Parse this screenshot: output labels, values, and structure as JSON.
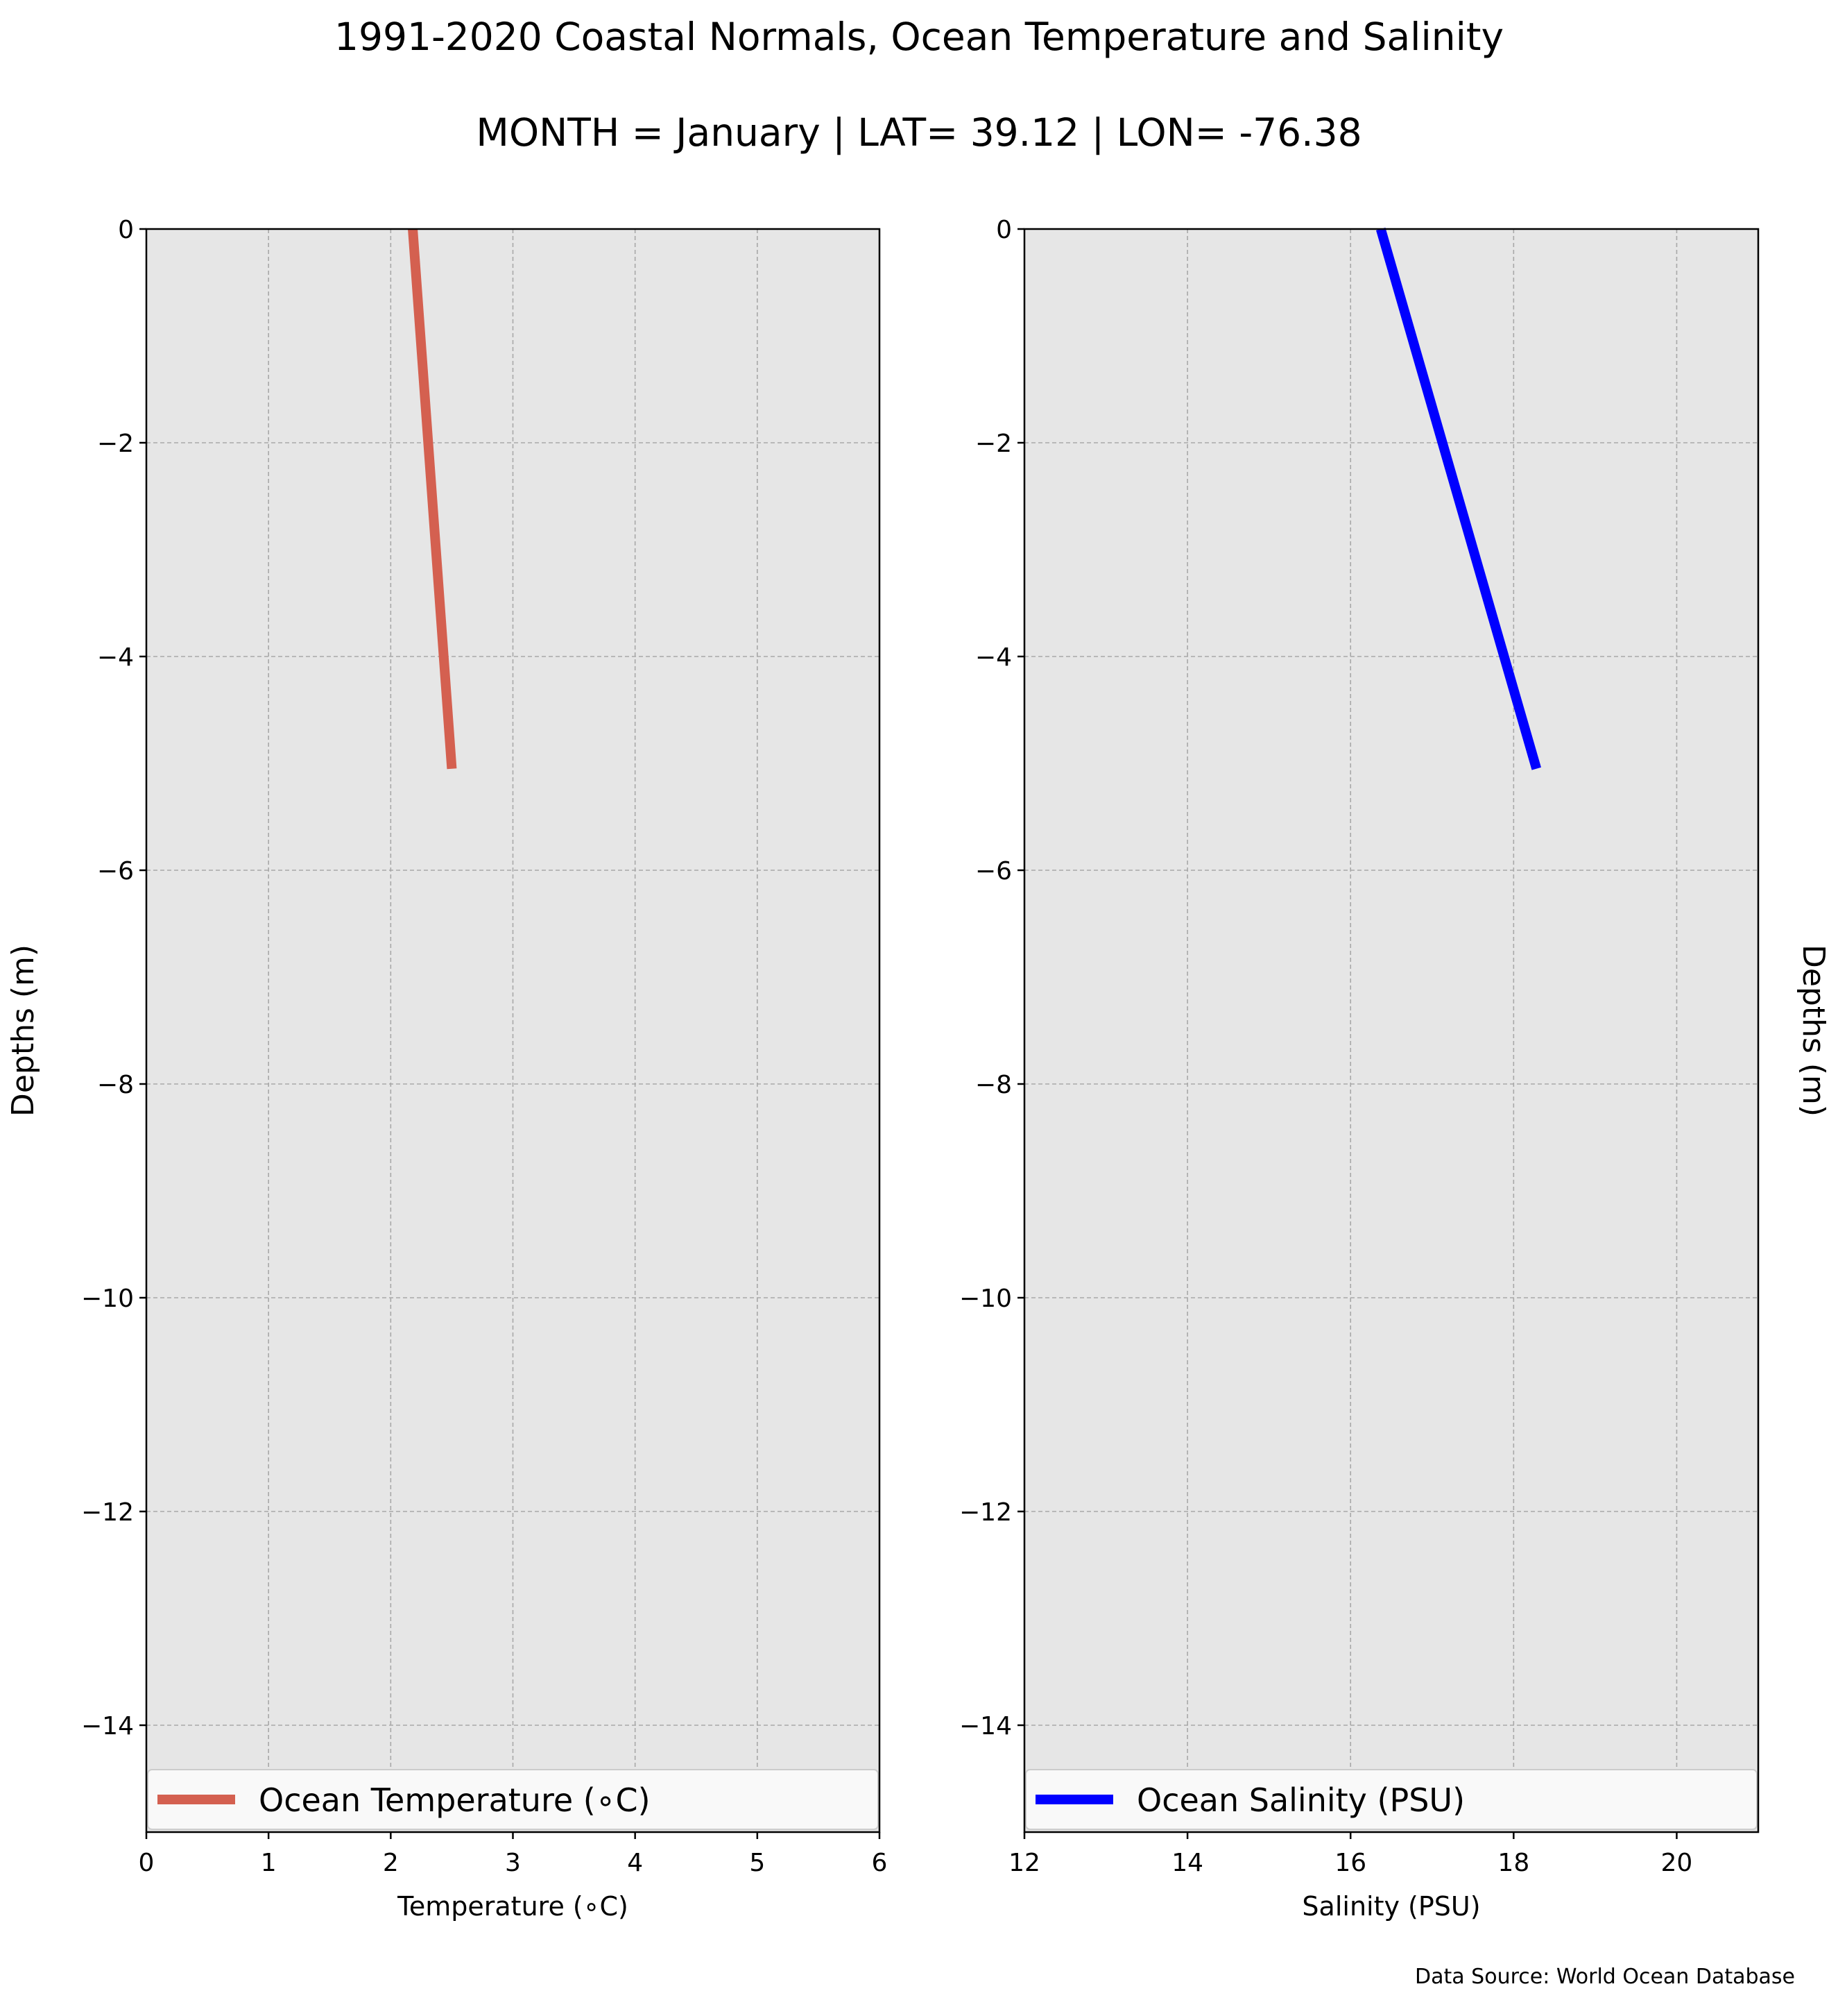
{
  "figure": {
    "title": "1991-2020 Coastal Normals, Ocean Temperature and Salinity",
    "subtitle": "MONTH = January | LAT= 39.12 | LON= -76.38",
    "source": "Data Source: World Ocean Database"
  },
  "chart_data": [
    {
      "type": "line",
      "orientation": "profile",
      "xlabel": "Temperature (∘C)",
      "ylabel": "Depths (m)",
      "xlim": [
        0,
        6
      ],
      "ylim": [
        -15,
        0
      ],
      "xticks": [
        "0",
        "1",
        "2",
        "3",
        "4",
        "5",
        "6"
      ],
      "yticks": [
        "0",
        "−2",
        "−4",
        "−6",
        "−8",
        "−10",
        "−12",
        "−14"
      ],
      "ytick_values": [
        0,
        -2,
        -4,
        -6,
        -8,
        -10,
        -12,
        -14
      ],
      "xtick_values": [
        0,
        1,
        2,
        3,
        4,
        5,
        6
      ],
      "grid": true,
      "legend_position": "bottom",
      "series": [
        {
          "name": "Ocean Temperature (∘C)",
          "color": "#d46050",
          "x": [
            2.18,
            2.5
          ],
          "y": [
            0,
            -5.05
          ]
        }
      ]
    },
    {
      "type": "line",
      "orientation": "profile",
      "xlabel": "Salinity (PSU)",
      "ylabel": "Depths (m)",
      "xlim": [
        12,
        21
      ],
      "ylim": [
        -15,
        0
      ],
      "xticks": [
        "12",
        "14",
        "16",
        "18",
        "20"
      ],
      "xtick_values": [
        12,
        14,
        16,
        18,
        20
      ],
      "yticks": [
        "0",
        "−2",
        "−4",
        "−6",
        "−8",
        "−10",
        "−12",
        "−14"
      ],
      "ytick_values": [
        0,
        -2,
        -4,
        -6,
        -8,
        -10,
        -12,
        -14
      ],
      "grid": true,
      "legend_position": "bottom",
      "series": [
        {
          "name": "Ocean Salinity (PSU)",
          "color": "#0000ff",
          "x": [
            16.37,
            18.28
          ],
          "y": [
            0,
            -5.05
          ]
        }
      ]
    }
  ]
}
